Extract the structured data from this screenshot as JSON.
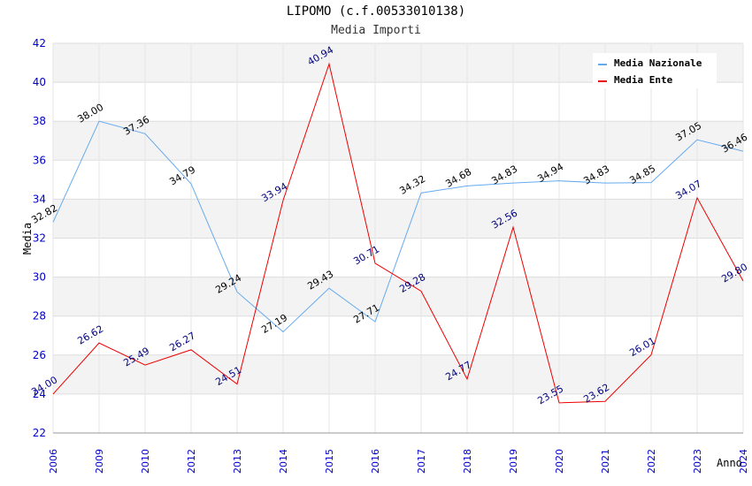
{
  "chart_data": {
    "type": "line",
    "title": "LIPOMO (c.f.00533010138)",
    "subtitle": "Media Importi",
    "xlabel": "Anno",
    "ylabel": "Media",
    "ylim": [
      22,
      42
    ],
    "yticks": [
      22,
      24,
      26,
      28,
      30,
      32,
      34,
      36,
      38,
      40,
      42
    ],
    "categories": [
      "2006",
      "2009",
      "2010",
      "2012",
      "2013",
      "2014",
      "2015",
      "2016",
      "2017",
      "2018",
      "2019",
      "2020",
      "2021",
      "2022",
      "2023",
      "2024"
    ],
    "legend_position": "top-right",
    "series": [
      {
        "name": "Media Nazionale",
        "color": "#66aaee",
        "values": [
          32.82,
          38.0,
          37.36,
          34.79,
          29.24,
          27.19,
          29.43,
          27.71,
          34.32,
          34.68,
          34.83,
          34.94,
          34.83,
          34.85,
          37.05,
          36.46
        ],
        "labels": [
          "32.82",
          "38.00",
          "37.36",
          "34.79",
          "29.24",
          "27.19",
          "29.43",
          "27.71",
          "34.32",
          "34.68",
          "34.83",
          "34.94",
          "34.83",
          "34.85",
          "37.05",
          "36.46"
        ]
      },
      {
        "name": "Media Ente",
        "color": "#ee0000",
        "values": [
          24.0,
          26.62,
          25.49,
          26.27,
          24.51,
          33.94,
          40.94,
          30.71,
          29.28,
          24.77,
          32.56,
          23.55,
          23.62,
          26.01,
          34.07,
          29.8
        ],
        "labels": [
          "24.00",
          "26.62",
          "25.49",
          "26.27",
          "24.51",
          "33.94",
          "40.94",
          "30.71",
          "29.28",
          "24.77",
          "32.56",
          "23.55",
          "23.62",
          "26.01",
          "34.07",
          "29.80"
        ]
      }
    ]
  }
}
